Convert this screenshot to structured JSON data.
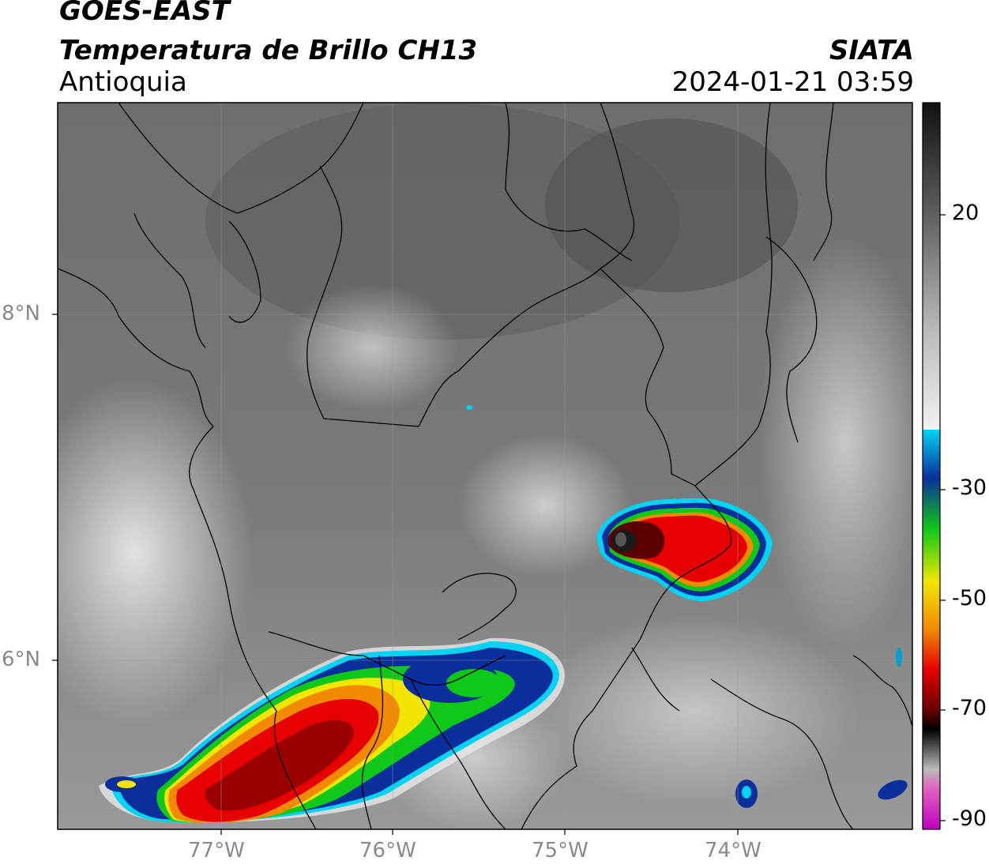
{
  "header": {
    "satellite": "GOES-EAST",
    "product": "Temperatura de Brillo CH13",
    "region": "Antioquia",
    "agency": "SIATA",
    "datetime": "2024-01-21 03:59"
  },
  "map": {
    "lat_range": [
      4.9,
      9.2
    ],
    "lon_range": [
      -77.95,
      -73.05
    ],
    "lat_ticks": [
      {
        "value": 8,
        "label": "8°N"
      },
      {
        "value": 6,
        "label": "6°N"
      }
    ],
    "lon_ticks": [
      {
        "value": -77,
        "label": "77°W"
      },
      {
        "value": -76,
        "label": "76°W"
      },
      {
        "value": -75,
        "label": "75°W"
      },
      {
        "value": -74,
        "label": "74°W"
      }
    ],
    "grid": true,
    "features": [
      "coastline",
      "department boundaries",
      "municipal boundaries"
    ]
  },
  "colorbar": {
    "unit_hint": "°C",
    "range": [
      -90,
      40
    ],
    "tick_labels": [
      "20",
      "-30",
      "-50",
      "-70",
      "-90"
    ],
    "tick_values": [
      20,
      -30,
      -50,
      -70,
      -90
    ],
    "colors": {
      "warm": "#4a4a4a",
      "cloud_top_cold": "#f2f2f2",
      "cyan": "#00d4f2",
      "blue": "#0a2f9c",
      "green": "#10c818",
      "yellow": "#f2e600",
      "orange": "#f28a00",
      "red": "#e60000",
      "darkred": "#6a0000",
      "black": "#000000",
      "magenta": "#c000c0"
    }
  }
}
